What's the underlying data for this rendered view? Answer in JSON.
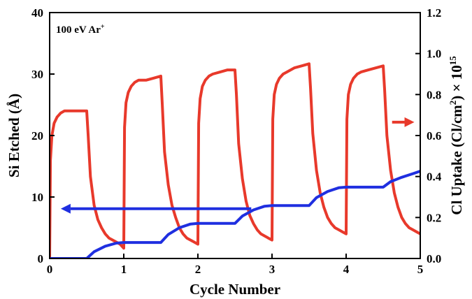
{
  "chart_data": {
    "type": "line",
    "annotation": {
      "text": "100 eV Ar",
      "superscript": "+"
    },
    "xlabel": "Cycle Number",
    "ylabel_left": "Si Etched (Å)",
    "ylabel_right": {
      "main": "Cl Uptake (Cl/cm",
      "sup1": "2",
      "mid": ") × 10",
      "sup2": "15"
    },
    "xlim": [
      0,
      5
    ],
    "ylim_left": [
      0,
      40
    ],
    "ylim_right": [
      0,
      1.2
    ],
    "x_ticks": [
      "0",
      "1",
      "2",
      "3",
      "4",
      "5"
    ],
    "y_left_ticks": [
      "0",
      "10",
      "20",
      "30",
      "40"
    ],
    "y_right_ticks": [
      "0.0",
      "0.2",
      "0.4",
      "0.6",
      "0.8",
      "1.0",
      "1.2"
    ],
    "grid": false,
    "colors": {
      "cl_uptake": "#e8392b",
      "si_etched": "#1f2fe0",
      "axis": "#000000"
    },
    "series": [
      {
        "axis": "right",
        "color": "#e8392b",
        "x": [
          0,
          0.01,
          0.03,
          0.06,
          0.1,
          0.15,
          0.2,
          0.3,
          0.4,
          0.5,
          0.52,
          0.55,
          0.6,
          0.65,
          0.7,
          0.75,
          0.8,
          0.85,
          0.9,
          0.95,
          1.0,
          1.01,
          1.03,
          1.06,
          1.1,
          1.15,
          1.2,
          1.3,
          1.4,
          1.5,
          1.52,
          1.55,
          1.6,
          1.65,
          1.7,
          1.75,
          1.8,
          1.85,
          1.9,
          1.95,
          2.0,
          2.01,
          2.03,
          2.06,
          2.1,
          2.15,
          2.2,
          2.3,
          2.4,
          2.5,
          2.52,
          2.55,
          2.6,
          2.65,
          2.7,
          2.75,
          2.8,
          2.85,
          2.9,
          2.95,
          3.0,
          3.01,
          3.03,
          3.06,
          3.1,
          3.15,
          3.2,
          3.3,
          3.4,
          3.5,
          3.52,
          3.55,
          3.6,
          3.65,
          3.7,
          3.75,
          3.8,
          3.85,
          3.9,
          3.95,
          4.0,
          4.01,
          4.03,
          4.06,
          4.1,
          4.15,
          4.2,
          4.3,
          4.4,
          4.5,
          4.52,
          4.55,
          4.6,
          4.65,
          4.7,
          4.75,
          4.8,
          4.85,
          4.9,
          4.95,
          5.0
        ],
        "y": [
          0,
          0.48,
          0.6,
          0.66,
          0.69,
          0.71,
          0.72,
          0.72,
          0.72,
          0.72,
          0.6,
          0.4,
          0.26,
          0.19,
          0.15,
          0.12,
          0.1,
          0.09,
          0.08,
          0.07,
          0.05,
          0.64,
          0.76,
          0.81,
          0.84,
          0.86,
          0.87,
          0.87,
          0.88,
          0.89,
          0.75,
          0.52,
          0.36,
          0.26,
          0.2,
          0.15,
          0.12,
          0.1,
          0.09,
          0.08,
          0.07,
          0.66,
          0.78,
          0.84,
          0.87,
          0.89,
          0.9,
          0.91,
          0.92,
          0.92,
          0.8,
          0.56,
          0.39,
          0.28,
          0.21,
          0.17,
          0.14,
          0.12,
          0.11,
          0.1,
          0.09,
          0.68,
          0.8,
          0.85,
          0.88,
          0.9,
          0.91,
          0.93,
          0.94,
          0.95,
          0.83,
          0.61,
          0.43,
          0.32,
          0.25,
          0.2,
          0.17,
          0.15,
          0.14,
          0.13,
          0.12,
          0.68,
          0.8,
          0.85,
          0.88,
          0.9,
          0.91,
          0.92,
          0.93,
          0.94,
          0.82,
          0.6,
          0.43,
          0.32,
          0.25,
          0.2,
          0.17,
          0.15,
          0.14,
          0.13,
          0.12
        ]
      },
      {
        "axis": "left",
        "color": "#1f2fe0",
        "x": [
          0,
          0.5,
          0.6,
          0.75,
          0.9,
          1.0,
          1.5,
          1.6,
          1.75,
          1.9,
          2.0,
          2.5,
          2.6,
          2.75,
          2.9,
          3.0,
          3.5,
          3.6,
          3.75,
          3.9,
          4.0,
          4.5,
          4.6,
          4.75,
          4.9,
          5.0
        ],
        "y": [
          0,
          0,
          1.1,
          2.0,
          2.5,
          2.6,
          2.6,
          3.9,
          5.0,
          5.6,
          5.7,
          5.7,
          6.9,
          7.9,
          8.5,
          8.6,
          8.6,
          9.9,
          10.9,
          11.5,
          11.6,
          11.6,
          12.5,
          13.2,
          13.8,
          14.2
        ]
      }
    ],
    "arrows": [
      {
        "color": "#1f2fe0",
        "direction": "left",
        "from": [
          2.72,
          8.1
        ],
        "to": [
          0.15,
          8.1
        ]
      },
      {
        "color": "#e8392b",
        "direction": "right",
        "from": [
          4.62,
          0.665
        ],
        "to": [
          4.92,
          0.665
        ]
      }
    ]
  }
}
